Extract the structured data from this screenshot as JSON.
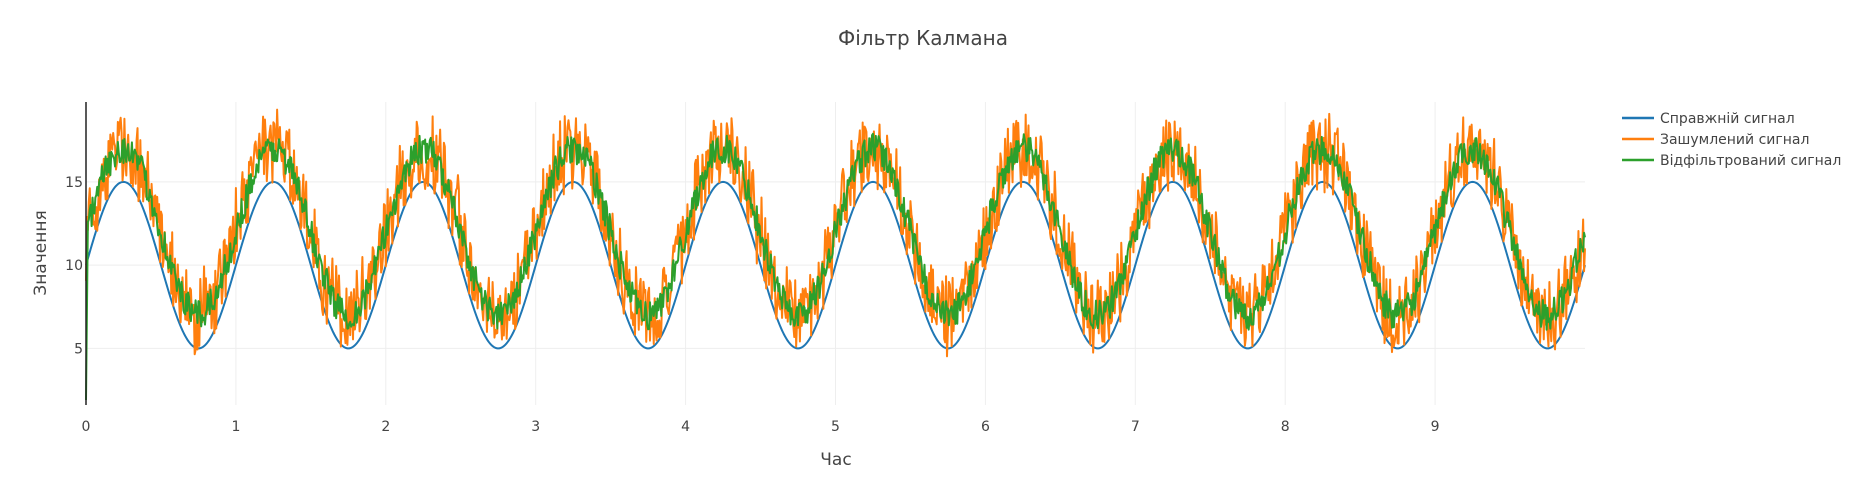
{
  "chart_data": {
    "type": "line",
    "title": "Фільтр Калмана",
    "xlabel": "Час",
    "ylabel": "Значення",
    "xlim": [
      0,
      10
    ],
    "ylim": [
      1.6,
      19.8
    ],
    "x_ticks": [
      0,
      1,
      2,
      3,
      4,
      5,
      6,
      7,
      8,
      9
    ],
    "x_tick_labels": [
      "0",
      "1",
      "2",
      "3",
      "4",
      "5",
      "6",
      "7",
      "8",
      "9"
    ],
    "y_ticks": [
      5,
      10,
      15
    ],
    "y_tick_labels": [
      "5",
      "10",
      "15"
    ],
    "grid": true,
    "legend_position": "top-right",
    "series": [
      {
        "name": "Справжній сигнал",
        "color": "#1f77b4",
        "description": "y = 10 + 5·sin(2πx)",
        "mean": 10,
        "amplitude": 5,
        "period": 1,
        "min": 5,
        "max": 15
      },
      {
        "name": "Зашумлений сигнал",
        "color": "#ff7f0e",
        "mean": 12,
        "amplitude": 5,
        "period": 1,
        "noise_band": 2.2,
        "min": 5,
        "max": 19
      },
      {
        "name": "Відфільтрований сигнал",
        "color": "#2ca02c",
        "mean": 12,
        "amplitude": 5,
        "period": 1,
        "noise_band": 0.9,
        "start_value": 1.9,
        "min": 1.9,
        "max": 18.3
      }
    ]
  }
}
